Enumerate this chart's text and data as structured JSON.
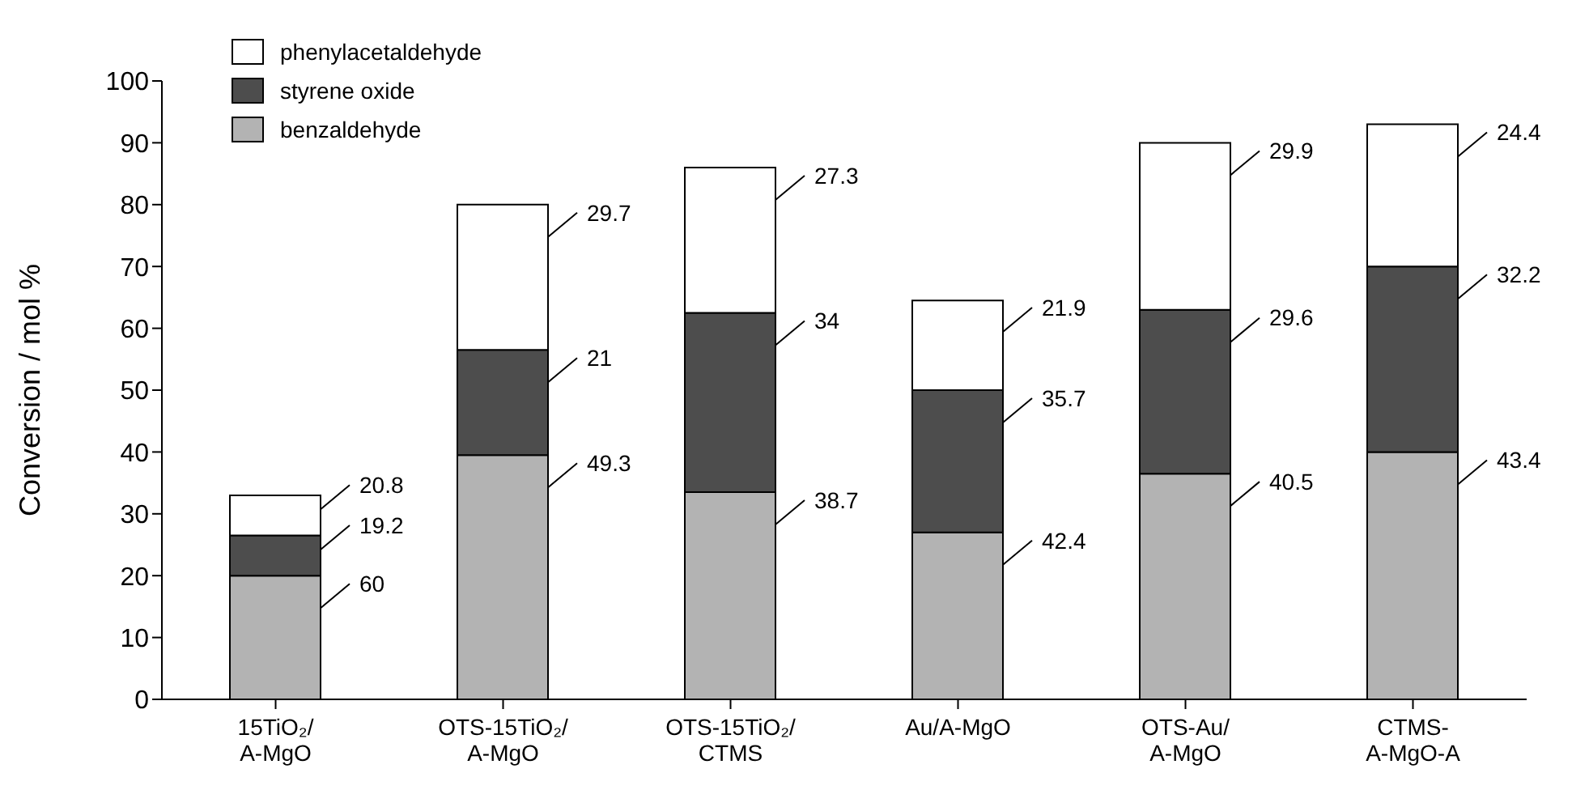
{
  "chart_data": {
    "type": "bar",
    "stacked": true,
    "ylabel": "Conversion / mol %",
    "categories": [
      "15TiO₂/\nA-MgO",
      "OTS-15TiO₂/\nA-MgO",
      "OTS-15TiO₂/\nCTMS",
      "Au/A-MgO",
      "OTS-Au/\nA-MgO",
      "CTMS-\nA-MgO-A"
    ],
    "series": [
      {
        "name": "benzaldehyde",
        "color": "#b3b3b3",
        "values": [
          20,
          39.5,
          33.5,
          27,
          36.5,
          40
        ]
      },
      {
        "name": "styrene oxide",
        "color": "#4d4d4d",
        "values": [
          6.5,
          17,
          29,
          23,
          26.5,
          30
        ]
      },
      {
        "name": "phenylacetaldehyde",
        "color": "#ffffff",
        "values": [
          6.5,
          23.5,
          23.5,
          14.5,
          27,
          23
        ]
      }
    ],
    "ylim": [
      0,
      100
    ],
    "yticks": [
      0,
      10,
      20,
      30,
      40,
      50,
      60,
      70,
      80,
      90,
      100
    ],
    "legend": "top left",
    "annotations": [
      "60",
      "19.2",
      "20.8",
      "49.3",
      "21",
      "29.7",
      "38.7",
      "34",
      "27.3",
      "42.4",
      "35.7",
      "21.9",
      "40.5",
      "29.6",
      "29.9",
      "43.4",
      "32.2",
      "24.4"
    ]
  }
}
